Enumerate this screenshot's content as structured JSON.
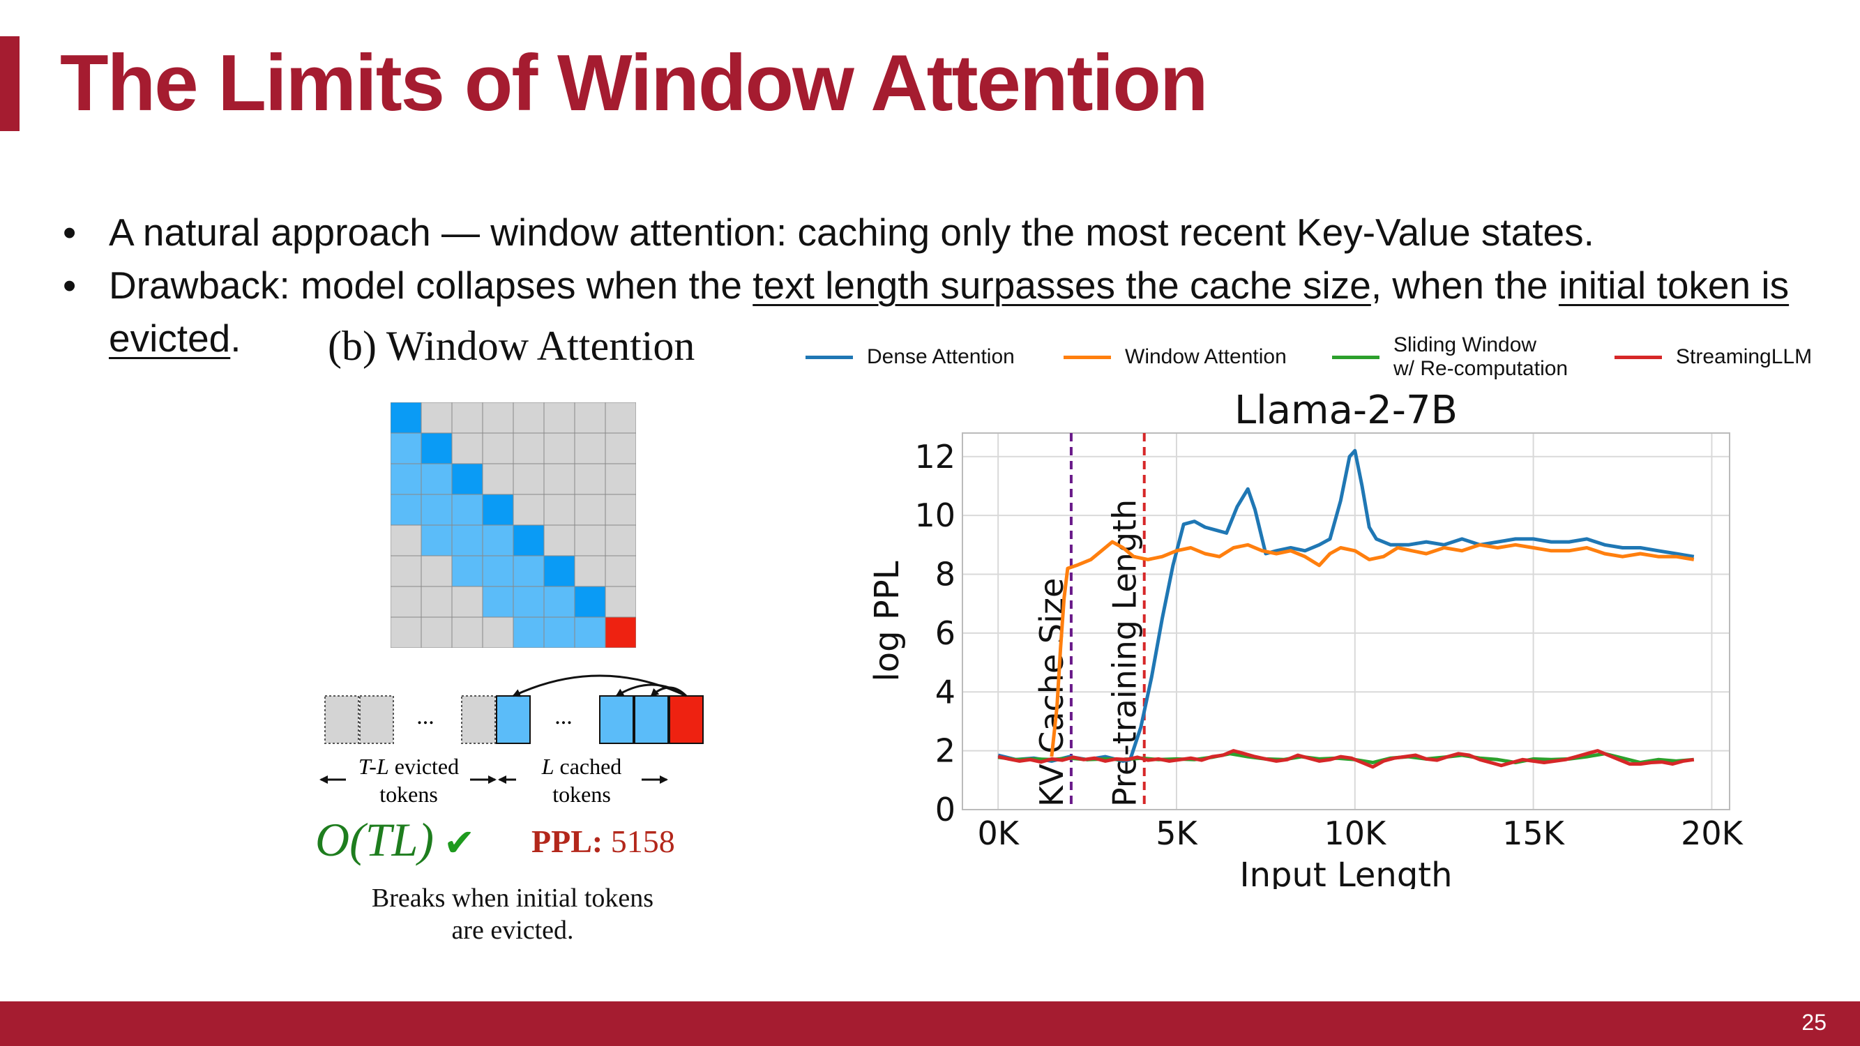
{
  "slide": {
    "title": "The Limits of Window Attention",
    "page_number": "25",
    "accent_color": "#a51c30"
  },
  "bullets": {
    "b1": {
      "text": "A natural approach — window attention: caching only the most recent Key-Value states."
    },
    "b2": {
      "pre": "Drawback: model collapses when the ",
      "u1": "text length surpasses the cache size",
      "mid": ", when the ",
      "u2": "initial token is evicted",
      "post": "."
    }
  },
  "figure": {
    "title": "(b) Window Attention",
    "matrix": {
      "size": 8,
      "window": 4,
      "colors": {
        "empty": "#d4d4d4",
        "cached": "#5bbcf9",
        "diag": "#0a9bf5",
        "last": "#ee2211",
        "grid": "#888888"
      }
    },
    "tokens": {
      "ellipsis": "...",
      "evicted_label_var": "T-L",
      "evicted_label_rest": " evicted",
      "cached_label_var": "L",
      "cached_label_rest": " cached",
      "tokens_word": "tokens"
    },
    "complexity": "O(TL)",
    "ppl_label": "PPL:",
    "ppl_value": "5158",
    "caption_line1": "Breaks when initial tokens",
    "caption_line2": "are evicted."
  },
  "chart_data": {
    "type": "line",
    "title": "Llama-2-7B",
    "xlabel": "Input Length",
    "ylabel": "log PPL",
    "xlim": [
      -1000,
      20500
    ],
    "ylim": [
      0,
      12.8
    ],
    "xticks": [
      0,
      5000,
      10000,
      15000,
      20000
    ],
    "xtick_labels": [
      "0K",
      "5K",
      "10K",
      "15K",
      "20K"
    ],
    "yticks": [
      0,
      2,
      4,
      6,
      8,
      10,
      12
    ],
    "grid": true,
    "legend_position": "top",
    "vlines": [
      {
        "x": 2048,
        "label": "KV Cache Size",
        "color": "#6a1b8a"
      },
      {
        "x": 4096,
        "label": "Pre-training Length",
        "color": "#d62728"
      }
    ],
    "series": [
      {
        "name": "Dense Attention",
        "color": "#1f77b4",
        "points": [
          [
            0,
            1.85
          ],
          [
            500,
            1.7
          ],
          [
            1000,
            1.75
          ],
          [
            1500,
            1.65
          ],
          [
            2000,
            1.8
          ],
          [
            2500,
            1.7
          ],
          [
            3000,
            1.8
          ],
          [
            3500,
            1.65
          ],
          [
            3700,
            1.7
          ],
          [
            4000,
            2.8
          ],
          [
            4300,
            4.5
          ],
          [
            4600,
            6.5
          ],
          [
            4900,
            8.3
          ],
          [
            5200,
            9.7
          ],
          [
            5500,
            9.8
          ],
          [
            5800,
            9.6
          ],
          [
            6100,
            9.5
          ],
          [
            6400,
            9.4
          ],
          [
            6700,
            10.3
          ],
          [
            7000,
            10.9
          ],
          [
            7200,
            10.2
          ],
          [
            7500,
            8.7
          ],
          [
            7800,
            8.8
          ],
          [
            8200,
            8.9
          ],
          [
            8600,
            8.8
          ],
          [
            9000,
            9.0
          ],
          [
            9300,
            9.2
          ],
          [
            9600,
            10.5
          ],
          [
            9850,
            12.0
          ],
          [
            10000,
            12.2
          ],
          [
            10200,
            11.0
          ],
          [
            10400,
            9.6
          ],
          [
            10600,
            9.2
          ],
          [
            11000,
            9.0
          ],
          [
            11500,
            9.0
          ],
          [
            12000,
            9.1
          ],
          [
            12500,
            9.0
          ],
          [
            13000,
            9.2
          ],
          [
            13500,
            9.0
          ],
          [
            14000,
            9.1
          ],
          [
            14500,
            9.2
          ],
          [
            15000,
            9.2
          ],
          [
            15500,
            9.1
          ],
          [
            16000,
            9.1
          ],
          [
            16500,
            9.2
          ],
          [
            17000,
            9.0
          ],
          [
            17500,
            8.9
          ],
          [
            18000,
            8.9
          ],
          [
            18500,
            8.8
          ],
          [
            19000,
            8.7
          ],
          [
            19500,
            8.6
          ]
        ]
      },
      {
        "name": "Window Attention",
        "color": "#ff7f0e",
        "points": [
          [
            1500,
            1.8
          ],
          [
            1650,
            3.5
          ],
          [
            1750,
            5.5
          ],
          [
            1850,
            7.2
          ],
          [
            1950,
            8.2
          ],
          [
            2200,
            8.3
          ],
          [
            2600,
            8.5
          ],
          [
            2900,
            8.8
          ],
          [
            3200,
            9.1
          ],
          [
            3500,
            8.9
          ],
          [
            3800,
            8.6
          ],
          [
            4200,
            8.5
          ],
          [
            4600,
            8.6
          ],
          [
            5000,
            8.8
          ],
          [
            5400,
            8.9
          ],
          [
            5800,
            8.7
          ],
          [
            6200,
            8.6
          ],
          [
            6600,
            8.9
          ],
          [
            7000,
            9.0
          ],
          [
            7400,
            8.8
          ],
          [
            7800,
            8.7
          ],
          [
            8200,
            8.8
          ],
          [
            8600,
            8.6
          ],
          [
            9000,
            8.3
          ],
          [
            9300,
            8.7
          ],
          [
            9600,
            8.9
          ],
          [
            10000,
            8.8
          ],
          [
            10400,
            8.5
          ],
          [
            10800,
            8.6
          ],
          [
            11200,
            8.9
          ],
          [
            11600,
            8.8
          ],
          [
            12000,
            8.7
          ],
          [
            12500,
            8.9
          ],
          [
            13000,
            8.8
          ],
          [
            13500,
            9.0
          ],
          [
            14000,
            8.9
          ],
          [
            14500,
            9.0
          ],
          [
            15000,
            8.9
          ],
          [
            15500,
            8.8
          ],
          [
            16000,
            8.8
          ],
          [
            16500,
            8.9
          ],
          [
            17000,
            8.7
          ],
          [
            17500,
            8.6
          ],
          [
            18000,
            8.7
          ],
          [
            18500,
            8.6
          ],
          [
            19000,
            8.6
          ],
          [
            19500,
            8.5
          ]
        ]
      },
      {
        "name": "Sliding Window\nw/ Re-computation",
        "color": "#2ca02c",
        "points": [
          [
            0,
            1.78
          ],
          [
            500,
            1.7
          ],
          [
            1000,
            1.72
          ],
          [
            1500,
            1.7
          ],
          [
            2000,
            1.75
          ],
          [
            2500,
            1.7
          ],
          [
            3000,
            1.72
          ],
          [
            3500,
            1.7
          ],
          [
            4000,
            1.75
          ],
          [
            4500,
            1.7
          ],
          [
            5000,
            1.72
          ],
          [
            5500,
            1.7
          ],
          [
            6000,
            1.78
          ],
          [
            6500,
            1.9
          ],
          [
            7000,
            1.8
          ],
          [
            7500,
            1.72
          ],
          [
            8000,
            1.7
          ],
          [
            8500,
            1.8
          ],
          [
            9000,
            1.72
          ],
          [
            9500,
            1.75
          ],
          [
            10000,
            1.7
          ],
          [
            10500,
            1.6
          ],
          [
            11000,
            1.75
          ],
          [
            11500,
            1.8
          ],
          [
            12000,
            1.72
          ],
          [
            12500,
            1.78
          ],
          [
            13000,
            1.85
          ],
          [
            13500,
            1.75
          ],
          [
            14000,
            1.7
          ],
          [
            14500,
            1.6
          ],
          [
            15000,
            1.72
          ],
          [
            15500,
            1.7
          ],
          [
            16000,
            1.72
          ],
          [
            16500,
            1.8
          ],
          [
            17000,
            1.9
          ],
          [
            17500,
            1.75
          ],
          [
            18000,
            1.6
          ],
          [
            18500,
            1.7
          ],
          [
            19000,
            1.65
          ],
          [
            19500,
            1.7
          ]
        ]
      },
      {
        "name": "StreamingLLM",
        "color": "#d62728",
        "points": [
          [
            0,
            1.8
          ],
          [
            300,
            1.72
          ],
          [
            600,
            1.65
          ],
          [
            900,
            1.7
          ],
          [
            1200,
            1.62
          ],
          [
            1500,
            1.72
          ],
          [
            1800,
            1.68
          ],
          [
            2100,
            1.78
          ],
          [
            2400,
            1.7
          ],
          [
            2700,
            1.75
          ],
          [
            3000,
            1.65
          ],
          [
            3300,
            1.72
          ],
          [
            3600,
            1.7
          ],
          [
            3900,
            1.78
          ],
          [
            4200,
            1.68
          ],
          [
            4500,
            1.72
          ],
          [
            4800,
            1.65
          ],
          [
            5100,
            1.7
          ],
          [
            5400,
            1.75
          ],
          [
            5700,
            1.68
          ],
          [
            6000,
            1.8
          ],
          [
            6300,
            1.85
          ],
          [
            6600,
            2.0
          ],
          [
            6900,
            1.9
          ],
          [
            7200,
            1.8
          ],
          [
            7500,
            1.72
          ],
          [
            7800,
            1.65
          ],
          [
            8100,
            1.7
          ],
          [
            8400,
            1.85
          ],
          [
            8700,
            1.75
          ],
          [
            9000,
            1.65
          ],
          [
            9300,
            1.7
          ],
          [
            9600,
            1.8
          ],
          [
            9900,
            1.75
          ],
          [
            10200,
            1.6
          ],
          [
            10500,
            1.45
          ],
          [
            10800,
            1.65
          ],
          [
            11100,
            1.75
          ],
          [
            11400,
            1.8
          ],
          [
            11700,
            1.85
          ],
          [
            12000,
            1.72
          ],
          [
            12300,
            1.68
          ],
          [
            12600,
            1.8
          ],
          [
            12900,
            1.9
          ],
          [
            13200,
            1.85
          ],
          [
            13500,
            1.7
          ],
          [
            13800,
            1.6
          ],
          [
            14100,
            1.5
          ],
          [
            14400,
            1.6
          ],
          [
            14700,
            1.7
          ],
          [
            15000,
            1.65
          ],
          [
            15300,
            1.6
          ],
          [
            15600,
            1.65
          ],
          [
            15900,
            1.7
          ],
          [
            16200,
            1.8
          ],
          [
            16500,
            1.9
          ],
          [
            16800,
            2.0
          ],
          [
            17100,
            1.85
          ],
          [
            17400,
            1.7
          ],
          [
            17700,
            1.55
          ],
          [
            18000,
            1.55
          ],
          [
            18300,
            1.6
          ],
          [
            18600,
            1.62
          ],
          [
            18900,
            1.55
          ],
          [
            19200,
            1.65
          ],
          [
            19500,
            1.7
          ]
        ]
      }
    ]
  }
}
